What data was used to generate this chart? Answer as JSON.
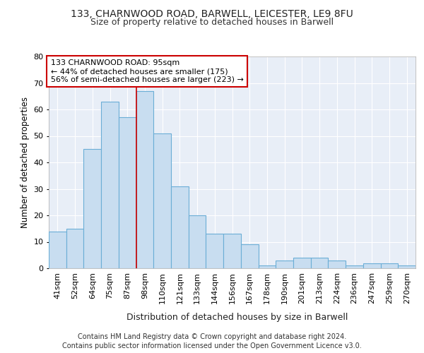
{
  "title1": "133, CHARNWOOD ROAD, BARWELL, LEICESTER, LE9 8FU",
  "title2": "Size of property relative to detached houses in Barwell",
  "xlabel": "Distribution of detached houses by size in Barwell",
  "ylabel": "Number of detached properties",
  "categories": [
    "41sqm",
    "52sqm",
    "64sqm",
    "75sqm",
    "87sqm",
    "98sqm",
    "110sqm",
    "121sqm",
    "133sqm",
    "144sqm",
    "156sqm",
    "167sqm",
    "178sqm",
    "190sqm",
    "201sqm",
    "213sqm",
    "224sqm",
    "236sqm",
    "247sqm",
    "259sqm",
    "270sqm"
  ],
  "values": [
    14,
    15,
    45,
    63,
    57,
    67,
    51,
    31,
    20,
    13,
    13,
    9,
    1,
    3,
    4,
    4,
    3,
    1,
    2,
    2,
    1
  ],
  "bar_color": "#c8ddf0",
  "bar_edge_color": "#6baed6",
  "red_line_x": 5.0,
  "annotation_title": "133 CHARNWOOD ROAD: 95sqm",
  "annotation_line1": "← 44% of detached houses are smaller (175)",
  "annotation_line2": "56% of semi-detached houses are larger (223) →",
  "annotation_box_color": "#ffffff",
  "annotation_box_edge": "#cc0000",
  "red_line_color": "#cc0000",
  "footer1": "Contains HM Land Registry data © Crown copyright and database right 2024.",
  "footer2": "Contains public sector information licensed under the Open Government Licence v3.0.",
  "ylim": [
    0,
    80
  ],
  "yticks": [
    0,
    10,
    20,
    30,
    40,
    50,
    60,
    70,
    80
  ],
  "bg_color": "#ffffff",
  "plot_bg_color": "#e8eef7",
  "grid_color": "#ffffff",
  "title1_fontsize": 10,
  "title2_fontsize": 9,
  "tick_fontsize": 8,
  "ylabel_fontsize": 8.5,
  "xlabel_fontsize": 9,
  "annotation_fontsize": 8,
  "footer_fontsize": 7
}
